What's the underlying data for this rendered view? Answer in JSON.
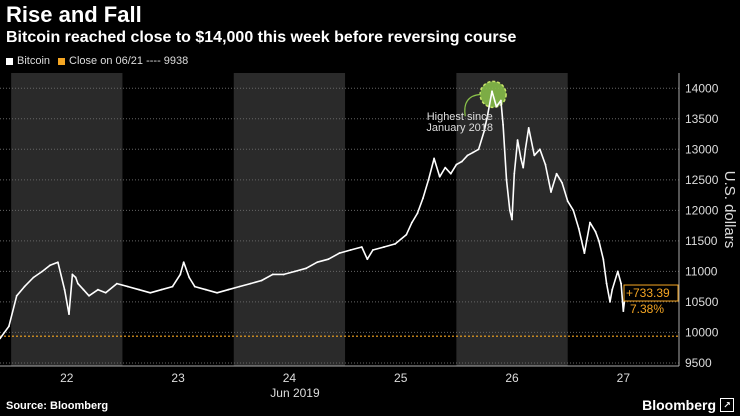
{
  "header": {
    "title": "Rise and Fall",
    "subtitle": "Bitcoin reached close to $14,000 this week before reversing course"
  },
  "legend": [
    {
      "label": "Bitcoin",
      "color": "#ffffff"
    },
    {
      "label": "Close on 06/21 ---- 9938",
      "color": "#f5a623"
    }
  ],
  "footer": {
    "source": "Source: Bloomberg",
    "brand": "Bloomberg"
  },
  "chart_data": {
    "type": "line",
    "title": "Rise and Fall",
    "subtitle": "Bitcoin reached close to $14,000 this week before reversing course",
    "xlabel": "Jun 2019",
    "ylabel": "U.S. dollars",
    "xlim": [
      21.9,
      28.0
    ],
    "ylim": [
      9450,
      14250
    ],
    "yticks": [
      9500,
      10000,
      10500,
      11000,
      11500,
      12000,
      12500,
      13000,
      13500,
      14000
    ],
    "xticks": [
      {
        "value": 22.5,
        "label": "22"
      },
      {
        "value": 23.5,
        "label": "23"
      },
      {
        "value": 24.5,
        "label": "24"
      },
      {
        "value": 25.5,
        "label": "25"
      },
      {
        "value": 26.5,
        "label": "26"
      },
      {
        "value": 27.5,
        "label": "27"
      }
    ],
    "shaded_days": [
      [
        22.0,
        23.0
      ],
      [
        24.0,
        25.0
      ],
      [
        26.0,
        27.0
      ]
    ],
    "reference_line": {
      "label": "Close on 06/21",
      "value": 9938,
      "color": "#f5a623"
    },
    "series": [
      {
        "name": "Bitcoin",
        "color": "#ffffff",
        "x": [
          21.9,
          21.98,
          22.05,
          22.12,
          22.2,
          22.28,
          22.35,
          22.42,
          22.48,
          22.52,
          22.55,
          22.58,
          22.6,
          22.65,
          22.7,
          22.78,
          22.85,
          22.95,
          23.05,
          23.15,
          23.25,
          23.35,
          23.45,
          23.52,
          23.55,
          23.6,
          23.65,
          23.75,
          23.85,
          23.95,
          24.05,
          24.15,
          24.25,
          24.35,
          24.45,
          24.55,
          24.65,
          24.75,
          24.85,
          24.95,
          25.05,
          25.15,
          25.2,
          25.25,
          25.35,
          25.45,
          25.55,
          25.6,
          25.65,
          25.7,
          25.75,
          25.8,
          25.85,
          25.9,
          25.95,
          26.0,
          26.05,
          26.1,
          26.15,
          26.2,
          26.25,
          26.28,
          26.32,
          26.36,
          26.4,
          26.42,
          26.45,
          26.48,
          26.5,
          26.52,
          26.55,
          26.58,
          26.6,
          26.62,
          26.65,
          26.7,
          26.75,
          26.8,
          26.85,
          26.9,
          26.95,
          27.0,
          27.05,
          27.1,
          27.15,
          27.2,
          27.25,
          27.28,
          27.32,
          27.35,
          27.38,
          27.4,
          27.45,
          27.48,
          27.5,
          27.52
        ],
        "values": [
          9900,
          10100,
          10600,
          10750,
          10900,
          11000,
          11100,
          11150,
          10700,
          10300,
          10950,
          10900,
          10800,
          10700,
          10600,
          10700,
          10650,
          10800,
          10750,
          10700,
          10650,
          10700,
          10750,
          10950,
          11150,
          10900,
          10750,
          10700,
          10650,
          10700,
          10750,
          10800,
          10850,
          10950,
          10950,
          11000,
          11050,
          11150,
          11200,
          11300,
          11350,
          11400,
          11200,
          11350,
          11400,
          11450,
          11600,
          11800,
          11950,
          12200,
          12500,
          12850,
          12550,
          12700,
          12600,
          12750,
          12800,
          12900,
          12950,
          13000,
          13300,
          13550,
          13950,
          13700,
          13800,
          13400,
          12500,
          12000,
          11850,
          12600,
          13150,
          12850,
          12700,
          13000,
          13350,
          12900,
          13000,
          12750,
          12300,
          12600,
          12450,
          12150,
          12000,
          11700,
          11300,
          11800,
          11650,
          11500,
          11200,
          10800,
          10500,
          10700,
          11000,
          10800,
          10350,
          10671
        ]
      }
    ],
    "annotations": [
      {
        "text": "Highest since",
        "x": 26.33,
        "y": 13950
      },
      {
        "text": "January 2018",
        "x": 26.33,
        "y": 13950
      },
      {
        "text": "+733.39",
        "x": 27.52,
        "y": 10671
      },
      {
        "text": "7.38%",
        "x": 27.52,
        "y": 10671
      }
    ]
  }
}
